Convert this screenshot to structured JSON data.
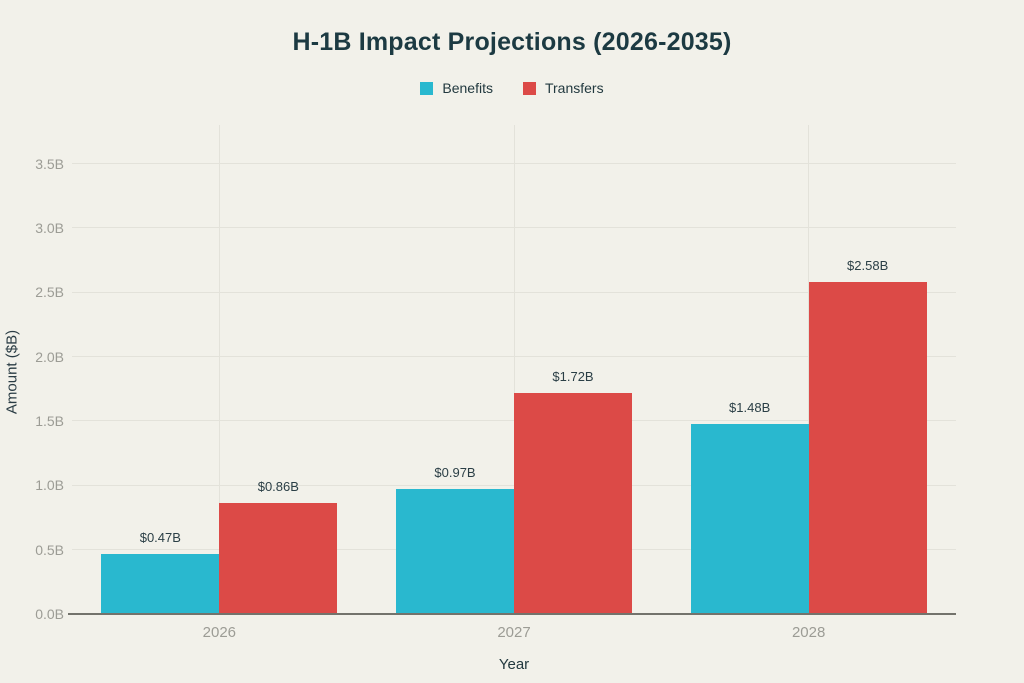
{
  "colors": {
    "background": "#F2F1EA",
    "title_text": "#1C3A42",
    "tick_text": "#9C9C95",
    "gridline": "#E3E2DA",
    "axis_line": "#73736C",
    "benefits": "#29B8CF",
    "transfers": "#DC4A47"
  },
  "chart_data": {
    "type": "bar",
    "title": "H-1B Impact Projections (2026-2035)",
    "xlabel": "Year",
    "ylabel": "Amount ($B)",
    "categories": [
      "2026",
      "2027",
      "2028"
    ],
    "series": [
      {
        "name": "Benefits",
        "color": "#29B8CF",
        "values": [
          0.47,
          0.97,
          1.48
        ],
        "labels": [
          "$0.47B",
          "$0.97B",
          "$1.48B"
        ]
      },
      {
        "name": "Transfers",
        "color": "#DC4A47",
        "values": [
          0.86,
          1.72,
          2.58
        ],
        "labels": [
          "$0.86B",
          "$1.72B",
          "$2.58B"
        ]
      }
    ],
    "ylim": [
      0,
      3.8
    ],
    "yticks": [
      0,
      0.5,
      1.0,
      1.5,
      2.0,
      2.5,
      3.0,
      3.5
    ],
    "ytick_labels": [
      "0.0B",
      "0.5B",
      "1.0B",
      "1.5B",
      "2.0B",
      "2.5B",
      "3.0B",
      "3.5B"
    ],
    "grid": true,
    "legend_position": "top-center"
  }
}
